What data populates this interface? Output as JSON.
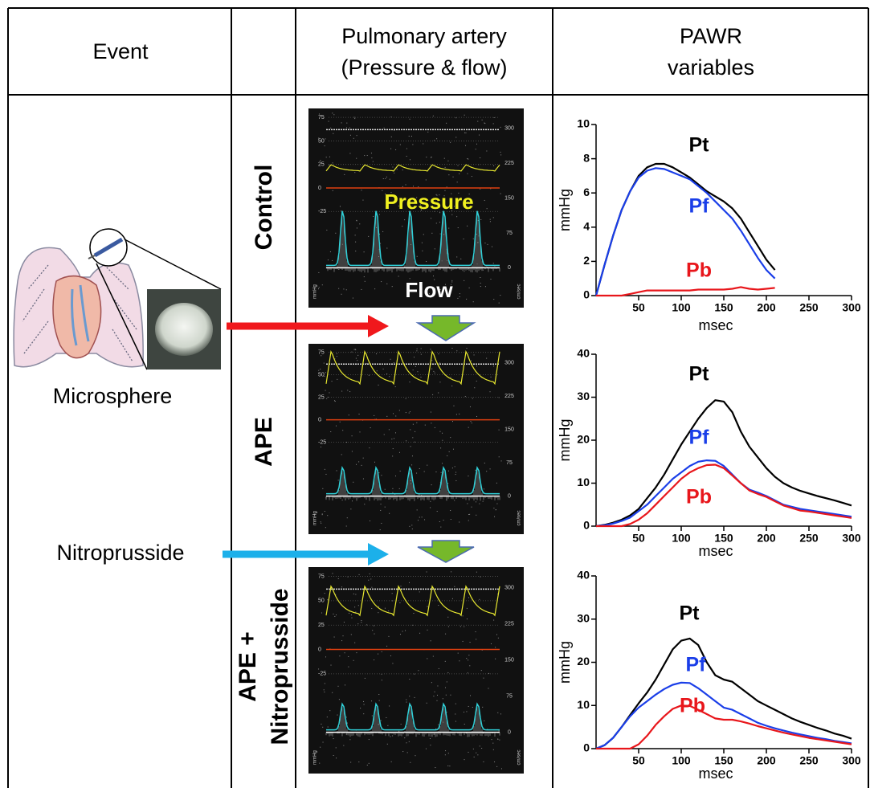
{
  "header": {
    "event": "Event",
    "pulmonary_artery": [
      "Pulmonary artery",
      "(Pressure & flow)"
    ],
    "pawr": [
      "PAWR",
      "variables"
    ]
  },
  "events": {
    "microsphere": "Microsphere",
    "nitroprusside": "Nitroprusside"
  },
  "rows": [
    {
      "label": [
        "Control"
      ]
    },
    {
      "label": [
        "APE"
      ]
    },
    {
      "label": [
        "APE +",
        "Nitroprusside"
      ]
    }
  ],
  "doppler": {
    "left_ticks": [
      75,
      50,
      25,
      0,
      -25
    ],
    "right_ticks": [
      300,
      225,
      150,
      75,
      0
    ],
    "left_unit": "mmHg",
    "right_unit": "cm/sec",
    "pressure": "Pressure",
    "flow": "Flow"
  },
  "charts": [
    {
      "type": "line",
      "ylabel": "mmHg",
      "xlabel": "msec",
      "xlim": [
        0,
        300
      ],
      "ylim": [
        0,
        10
      ],
      "xticks": [
        50,
        100,
        150,
        200,
        250,
        300
      ],
      "yticks": [
        0,
        2,
        4,
        6,
        8,
        10
      ],
      "x": [
        0,
        10,
        20,
        30,
        40,
        50,
        60,
        70,
        80,
        90,
        100,
        110,
        120,
        130,
        140,
        150,
        160,
        170,
        180,
        190,
        200,
        210
      ],
      "series": [
        {
          "name": "Pt",
          "color": "#000000",
          "values": [
            0,
            1.8,
            3.5,
            5.0,
            6.1,
            7.0,
            7.5,
            7.7,
            7.7,
            7.5,
            7.2,
            6.9,
            6.5,
            6.1,
            5.8,
            5.5,
            5.1,
            4.5,
            3.7,
            2.9,
            2.1,
            1.5
          ]
        },
        {
          "name": "Pf",
          "color": "#1a3ee8",
          "values": [
            0,
            1.8,
            3.5,
            5.0,
            6.1,
            6.9,
            7.3,
            7.45,
            7.4,
            7.2,
            7.0,
            6.8,
            6.4,
            6.0,
            5.5,
            5.0,
            4.5,
            3.8,
            3.0,
            2.2,
            1.5,
            1.0
          ]
        },
        {
          "name": "Pb",
          "color": "#e8161b",
          "values": [
            0,
            0,
            0,
            0,
            0.1,
            0.2,
            0.3,
            0.3,
            0.3,
            0.3,
            0.3,
            0.3,
            0.35,
            0.35,
            0.35,
            0.35,
            0.4,
            0.5,
            0.4,
            0.35,
            0.4,
            0.45
          ]
        }
      ]
    },
    {
      "type": "line",
      "ylabel": "mmHg",
      "xlabel": "msec",
      "xlim": [
        0,
        300
      ],
      "ylim": [
        0,
        40
      ],
      "xticks": [
        50,
        100,
        150,
        200,
        250,
        300
      ],
      "yticks": [
        0,
        10,
        20,
        30,
        40
      ],
      "x": [
        0,
        10,
        20,
        30,
        40,
        50,
        60,
        70,
        80,
        90,
        100,
        110,
        120,
        130,
        140,
        150,
        160,
        170,
        180,
        190,
        200,
        210,
        220,
        230,
        240,
        250,
        260,
        270,
        280,
        290,
        300
      ],
      "series": [
        {
          "name": "Pt",
          "color": "#000000",
          "values": [
            0,
            0.3,
            0.8,
            1.5,
            2.5,
            4,
            6.5,
            9,
            12,
            15.5,
            19,
            22,
            25,
            27.5,
            29.3,
            29,
            26.5,
            22,
            18.5,
            16,
            13.5,
            11.5,
            10,
            9,
            8.2,
            7.6,
            7,
            6.5,
            6,
            5.4,
            4.8
          ]
        },
        {
          "name": "Pf",
          "color": "#1a3ee8",
          "values": [
            0,
            0.2,
            0.6,
            1.2,
            2,
            3.5,
            5,
            7,
            9,
            11,
            12.5,
            14,
            15,
            15.3,
            15.2,
            14,
            12,
            10,
            8.5,
            7.8,
            7,
            6,
            5,
            4.5,
            4,
            3.7,
            3.4,
            3.1,
            2.8,
            2.5,
            2.2
          ]
        },
        {
          "name": "Pb",
          "color": "#e8161b",
          "values": [
            0,
            0,
            0,
            0,
            0.5,
            1.5,
            3,
            5,
            7,
            9,
            11,
            12.5,
            13.5,
            14.2,
            14.3,
            13.5,
            11.8,
            10,
            8.3,
            7.5,
            6.8,
            5.8,
            4.8,
            4.2,
            3.6,
            3.4,
            3.1,
            2.8,
            2.5,
            2.2,
            1.9
          ]
        }
      ]
    },
    {
      "type": "line",
      "ylabel": "mmHg",
      "xlabel": "msec",
      "xlim": [
        0,
        300
      ],
      "ylim": [
        0,
        40
      ],
      "xticks": [
        50,
        100,
        150,
        200,
        250,
        300
      ],
      "yticks": [
        0,
        10,
        20,
        30,
        40
      ],
      "x": [
        0,
        10,
        20,
        30,
        40,
        50,
        60,
        70,
        80,
        90,
        100,
        110,
        120,
        130,
        140,
        150,
        160,
        170,
        180,
        190,
        200,
        210,
        220,
        230,
        240,
        250,
        260,
        270,
        280,
        290,
        300
      ],
      "series": [
        {
          "name": "Pt",
          "color": "#000000",
          "values": [
            0,
            0.8,
            2.5,
            5,
            7.8,
            10.5,
            13,
            16,
            19.5,
            23,
            25,
            25.5,
            24,
            20,
            17,
            16,
            15.5,
            14,
            12.5,
            11,
            10,
            9,
            8,
            7,
            6.2,
            5.5,
            4.8,
            4.2,
            3.5,
            3,
            2.3
          ]
        },
        {
          "name": "Pf",
          "color": "#1a3ee8",
          "values": [
            0,
            0.8,
            2.5,
            5,
            7.5,
            9.5,
            11,
            12.5,
            13.8,
            14.8,
            15.3,
            15.2,
            14,
            12.5,
            11,
            9.5,
            9,
            8,
            7,
            6,
            5.3,
            4.7,
            4.2,
            3.7,
            3.3,
            2.9,
            2.5,
            2.2,
            1.8,
            1.5,
            1.2
          ]
        },
        {
          "name": "Pb",
          "color": "#e8161b",
          "values": [
            0,
            0,
            0,
            0,
            0,
            1,
            3,
            5.5,
            7.5,
            9.2,
            10,
            9.9,
            9,
            8,
            7,
            6.7,
            6.7,
            6.3,
            5.8,
            5.2,
            4.7,
            4.2,
            3.7,
            3.3,
            2.9,
            2.5,
            2.2,
            1.9,
            1.6,
            1.3,
            1
          ]
        }
      ]
    }
  ]
}
